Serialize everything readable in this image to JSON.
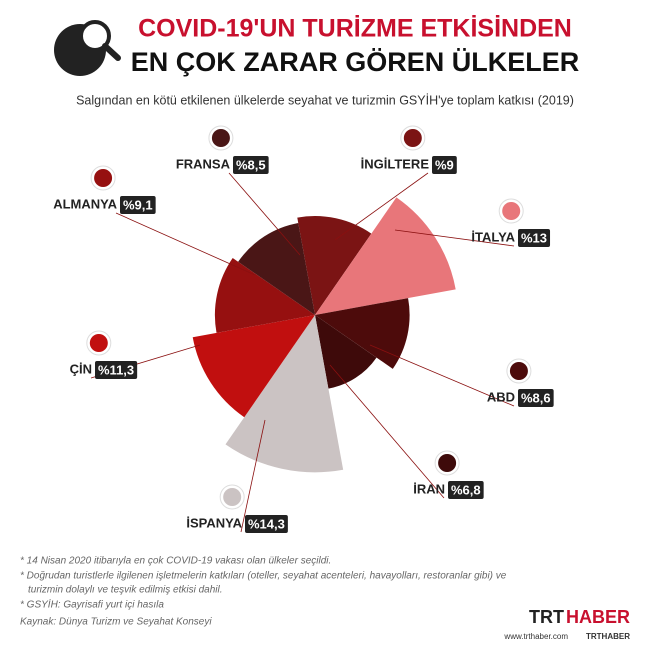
{
  "chart_data": {
    "type": "rose",
    "title": [
      "COVID-19'UN TURİZME ETKİSİNDEN",
      "EN ÇOK ZARAR GÖREN ÜLKELER"
    ],
    "subtitle": "Salgından en kötü etkilenen ülkelerde seyahat ve turizmin GSYİH'ye toplam katkısı (2019)",
    "categories": [
      "İNGİLTERE",
      "İTALYA",
      "ABD",
      "İRAN",
      "İSPANYA",
      "ÇİN",
      "ALMANYA",
      "FRANSA"
    ],
    "values": [
      9,
      13,
      8.6,
      6.8,
      14.3,
      11.3,
      9.1,
      8.5
    ],
    "value_labels": [
      "%9",
      "%13",
      "%8,6",
      "%6,8",
      "%14,3",
      "%11,3",
      "%9,1",
      "%8,5"
    ],
    "colors": [
      "#7b1414",
      "#e8767a",
      "#4d0b0b",
      "#3e0a0a",
      "#cbc3c3",
      "#c10f0f",
      "#961010",
      "#4a1616"
    ]
  },
  "footnotes": [
    "* 14 Nisan 2020 itibarıyla en çok COVID-19 vakası olan ülkeler seçildi.",
    "* Doğrudan turistlerle ilgilenen işletmelerin katkıları (oteller, seyahat acenteleri, havayolları, restoranlar gibi) ve",
    "turizmin dolaylı ve teşvik edilmiş etkisi dahil.",
    "* GSYİH: Gayrisafi yurt içi hasıla"
  ],
  "source": "Kaynak: Dünya Turizm ve Seyahat Konseyi",
  "brand": {
    "left": "TRT",
    "right": "HABER",
    "url": "www.trthaber.com",
    "handle": "TRTHABER"
  }
}
